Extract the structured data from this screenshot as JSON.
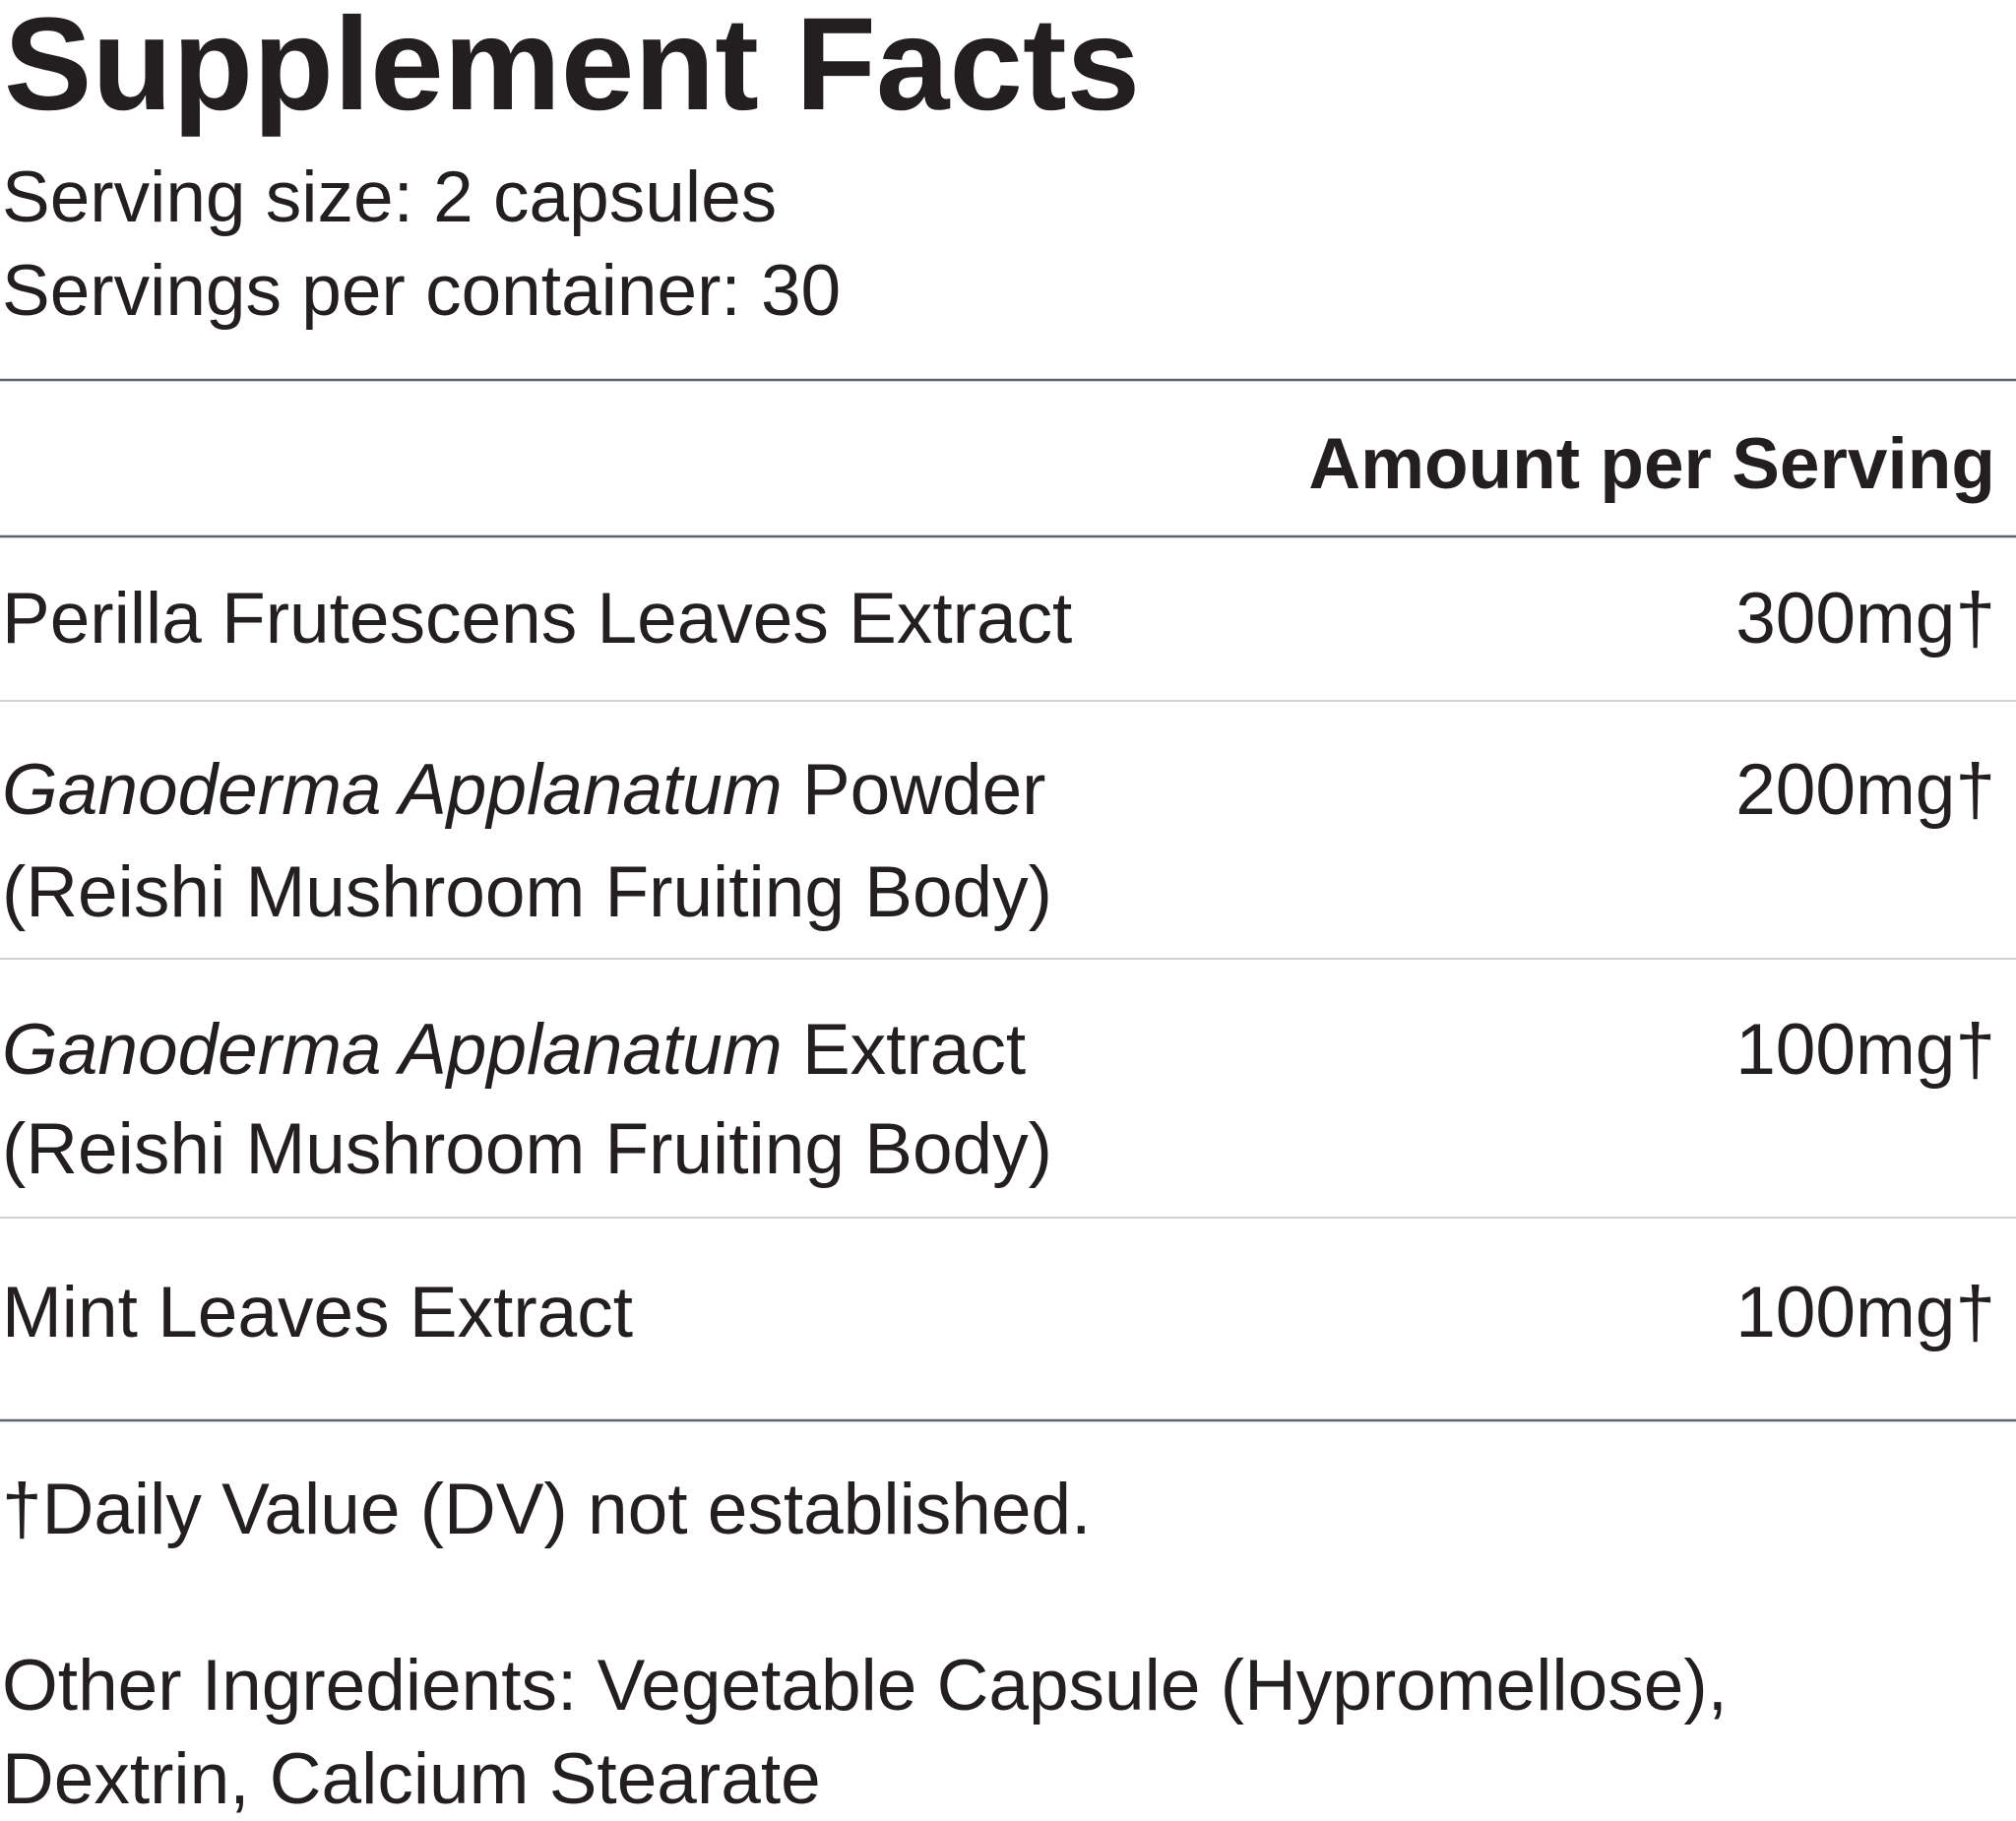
{
  "header": {
    "title": "Supplement Facts",
    "serving_size": "Serving size: 2 capsules",
    "servings_per_container": "Servings per container: 30"
  },
  "table": {
    "amount_header": "Amount per Serving",
    "rows": [
      {
        "name": "Perilla Frutescens Leaves Extract",
        "amount": "300mg†"
      },
      {
        "name_italic": "Ganoderma Applanatum",
        "name": "Powder",
        "subname": "(Reishi Mushroom Fruiting Body)",
        "amount": "200mg†"
      },
      {
        "name_italic": "Ganoderma Applanatum",
        "name": "Extract",
        "subname": "(Reishi Mushroom Fruiting Body)",
        "amount": "100mg†"
      },
      {
        "name": "Mint Leaves Extract",
        "amount": "100mg†"
      }
    ]
  },
  "footnote": "†Daily Value (DV) not established.",
  "other_ingredients": [
    "Other Ingredients: Vegetable Capsule (Hypromellose),",
    "Dextrin, Calcium Stearate"
  ]
}
